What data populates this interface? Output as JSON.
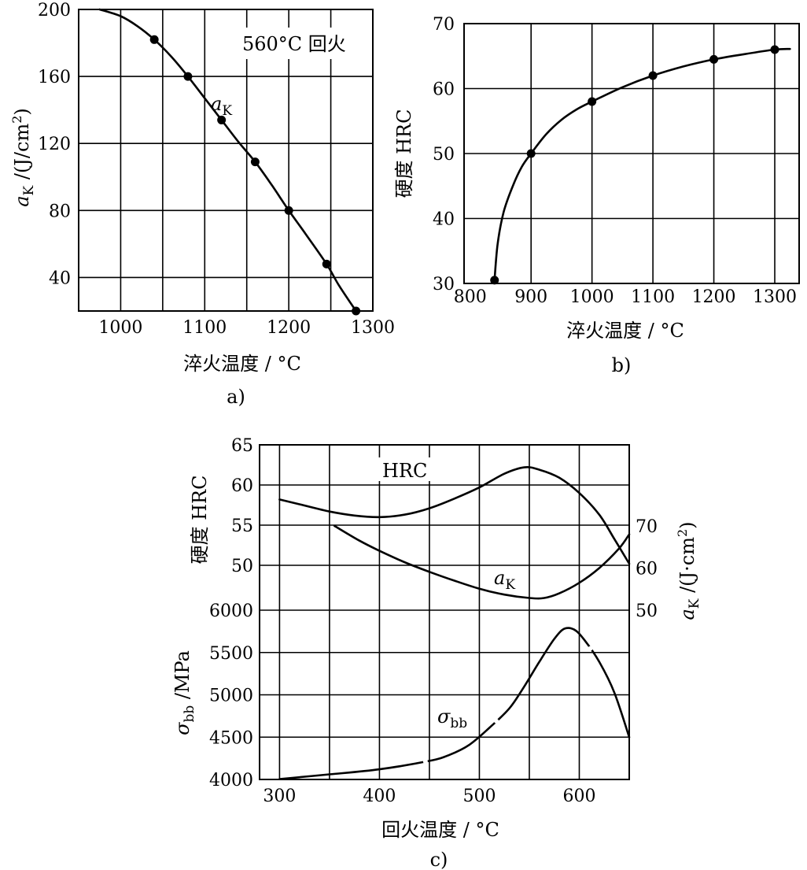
{
  "chart_data": [
    {
      "panel": "a)",
      "type": "line",
      "caption": "a)",
      "xlabel": "淬火温度 / °C",
      "ylabel": "a_K /(J/cm²)",
      "xlim": [
        950,
        1300
      ],
      "ylim": [
        20,
        200
      ],
      "xticks": [
        1000,
        1100,
        1200,
        1300
      ],
      "yticks": [
        40,
        80,
        120,
        160,
        200
      ],
      "grid": true,
      "annotation": "560°C 回火",
      "series": [
        {
          "name": "a_K",
          "points": [
            [
              1040,
              182
            ],
            [
              1080,
              160
            ],
            [
              1120,
              134
            ],
            [
              1160,
              109
            ],
            [
              1200,
              80
            ],
            [
              1245,
              48
            ],
            [
              1280,
              20
            ]
          ],
          "curve": [
            [
              975,
              200
            ],
            [
              1000,
              196
            ],
            [
              1020,
              190
            ],
            [
              1040,
              182
            ],
            [
              1060,
              172
            ],
            [
              1080,
              160
            ],
            [
              1100,
              147
            ],
            [
              1120,
              134
            ],
            [
              1140,
              121
            ],
            [
              1160,
              109
            ],
            [
              1180,
              95
            ],
            [
              1200,
              80
            ],
            [
              1220,
              66
            ],
            [
              1245,
              48
            ],
            [
              1260,
              35
            ],
            [
              1280,
              20
            ]
          ]
        }
      ]
    },
    {
      "panel": "b)",
      "type": "line",
      "caption": "b)",
      "xlabel": "淬火温度 / °C",
      "ylabel": "硬度 HRC",
      "xlim": [
        790,
        1340
      ],
      "ylim": [
        30,
        70
      ],
      "xticks": [
        800,
        900,
        1000,
        1100,
        1200,
        1300
      ],
      "yticks": [
        30,
        40,
        50,
        60,
        70
      ],
      "grid": true,
      "series": [
        {
          "name": "HRC",
          "points": [
            [
              840,
              30.5
            ],
            [
              900,
              50
            ],
            [
              1000,
              58
            ],
            [
              1100,
              62
            ],
            [
              1200,
              64.5
            ],
            [
              1300,
              66
            ]
          ],
          "curve": [
            [
              840,
              30.5
            ],
            [
              845,
              36
            ],
            [
              855,
              41
            ],
            [
              870,
              45
            ],
            [
              885,
              48
            ],
            [
              900,
              50
            ],
            [
              925,
              53
            ],
            [
              950,
              55.2
            ],
            [
              975,
              56.8
            ],
            [
              1000,
              58
            ],
            [
              1050,
              60.2
            ],
            [
              1100,
              62
            ],
            [
              1150,
              63.4
            ],
            [
              1200,
              64.5
            ],
            [
              1250,
              65.3
            ],
            [
              1300,
              66
            ],
            [
              1325,
              66.1
            ]
          ]
        }
      ]
    },
    {
      "panel": "c)",
      "type": "line",
      "caption": "c)",
      "xlabel": "回火温度 / °C",
      "xlim": [
        280,
        650
      ],
      "xticks": [
        300,
        400,
        500,
        600
      ],
      "grid": true,
      "hrc_axis": {
        "label": "硬度 HRC",
        "ylim": [
          50,
          65
        ],
        "ticks": [
          50,
          55,
          60,
          65
        ]
      },
      "ak_axis": {
        "label": "a_K /(J·cm²)",
        "ylim": [
          45,
          70
        ],
        "ticks": [
          50,
          60,
          70
        ]
      },
      "sigma_axis": {
        "label": "σ_bb /MPa",
        "ylim": [
          4000,
          6000
        ],
        "ticks": [
          4000,
          4500,
          5000,
          5500,
          6000
        ]
      },
      "series": [
        {
          "name": "HRC",
          "axis": "hrc",
          "points": [
            [
              300,
              58.2
            ],
            [
              320,
              57.6
            ],
            [
              350,
              56.7
            ],
            [
              375,
              56.2
            ],
            [
              400,
              56.0
            ],
            [
              425,
              56.3
            ],
            [
              450,
              57.1
            ],
            [
              475,
              58.3
            ],
            [
              500,
              59.7
            ],
            [
              525,
              61.4
            ],
            [
              545,
              62.2
            ],
            [
              560,
              61.9
            ],
            [
              580,
              60.9
            ],
            [
              600,
              59.0
            ],
            [
              620,
              56.3
            ],
            [
              635,
              53.3
            ],
            [
              650,
              50.2
            ]
          ]
        },
        {
          "name": "a_K",
          "axis": "ak",
          "points": [
            [
              355,
              70
            ],
            [
              380,
              66.5
            ],
            [
              400,
              64.1
            ],
            [
              425,
              61.4
            ],
            [
              450,
              59.1
            ],
            [
              475,
              57.0
            ],
            [
              500,
              55.1
            ],
            [
              525,
              53.7
            ],
            [
              550,
              52.9
            ],
            [
              565,
              52.9
            ],
            [
              580,
              54.0
            ],
            [
              600,
              56.5
            ],
            [
              620,
              60.0
            ],
            [
              640,
              64.7
            ],
            [
              650,
              68.0
            ]
          ]
        },
        {
          "name": "σ_bb",
          "axis": "sigma",
          "points": [
            [
              300,
              4005
            ],
            [
              350,
              4060
            ],
            [
              400,
              4120
            ],
            [
              450,
              4220
            ],
            [
              470,
              4290
            ],
            [
              490,
              4410
            ],
            [
              510,
              4610
            ],
            [
              530,
              4840
            ],
            [
              545,
              5100
            ],
            [
              560,
              5390
            ],
            [
              575,
              5660
            ],
            [
              585,
              5780
            ],
            [
              595,
              5770
            ],
            [
              605,
              5650
            ],
            [
              620,
              5390
            ],
            [
              635,
              5030
            ],
            [
              650,
              4500
            ]
          ]
        }
      ]
    }
  ]
}
